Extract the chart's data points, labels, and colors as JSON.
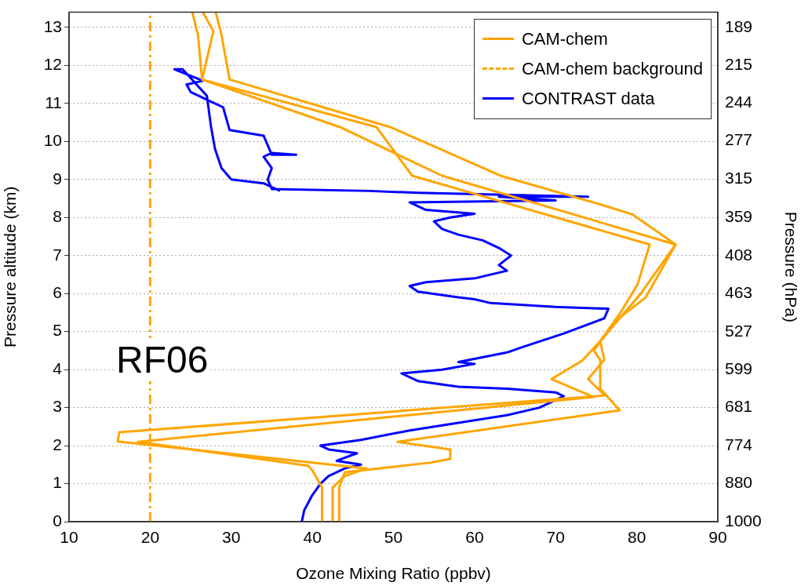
{
  "chart_data": {
    "type": "line",
    "xlabel": "Ozone Mixing Ratio (ppbv)",
    "ylabel": "Pressure altitude (km)",
    "y2label": "Pressure (hPa)",
    "xlim": [
      10,
      90
    ],
    "xticks": [
      10,
      20,
      30,
      40,
      50,
      60,
      70,
      80,
      90
    ],
    "ylim": [
      0,
      13.4
    ],
    "yticks": [
      0,
      1,
      2,
      3,
      4,
      5,
      6,
      7,
      8,
      9,
      10,
      11,
      12,
      13
    ],
    "y2lim": [
      1000,
      179.6
    ],
    "y2ticks": [
      1000,
      880,
      774,
      681,
      599,
      527,
      463,
      408,
      359,
      315,
      277,
      244,
      215,
      189
    ],
    "log": "y2",
    "grid": "y",
    "legend": "top right",
    "marker": "none",
    "annotations": [
      "RF06"
    ],
    "series": [
      {
        "name": "CAM-chem",
        "color": "#ffa500",
        "x": [
          41.2,
          41.2,
          40,
          39.5,
          18.5,
          74.7,
          69.5,
          73.3,
          75.5,
          78,
          80.1,
          81.6,
          52.3,
          47.9,
          26.4,
          25.9,
          25.2
        ],
        "values": [
          0,
          0.9,
          1.35,
          1.47,
          2.1,
          3.28,
          3.75,
          4.24,
          4.75,
          5.5,
          6.24,
          7.29,
          9.1,
          10.38,
          11.63,
          12.8,
          13.4
        ]
      },
      {
        "color": "#ffa500",
        "x": [
          42.5,
          42.5,
          44,
          46.7,
          16,
          16.2,
          76.1,
          74,
          76,
          75.5,
          78.5,
          80.5,
          84.8,
          56,
          43.4,
          26.4,
          27.8,
          26.5
        ],
        "values": [
          0,
          0.9,
          1.2,
          1.4,
          2.11,
          2.35,
          3.32,
          3.75,
          4.26,
          4.75,
          5.5,
          6.0,
          7.29,
          9.1,
          10.38,
          11.63,
          12.9,
          13.4
        ]
      },
      {
        "color": "#ffa500",
        "x": [
          43.3,
          43.3,
          44,
          54.5,
          57,
          57,
          50.5,
          77.9,
          75.5,
          75.5,
          74.7,
          77.5,
          81.1,
          84.8,
          79.5,
          75.1,
          63.2,
          49.6,
          29.8,
          28.8,
          28.1
        ],
        "values": [
          0,
          0.9,
          1.3,
          1.55,
          1.65,
          1.9,
          2.1,
          2.93,
          3.5,
          4.26,
          4.5,
          5.3,
          5.9,
          7.29,
          8.08,
          8.37,
          9.1,
          10.38,
          11.63,
          12.8,
          13.4
        ]
      },
      {
        "name": "CAM-chem background",
        "color": "#ffa500",
        "line_style": "dashed",
        "x": [
          20,
          20
        ],
        "values": [
          0,
          13.4
        ]
      },
      {
        "name": "CONTRAST data",
        "color": "#0000ff",
        "x": [
          38.7,
          39,
          40,
          41,
          42,
          44,
          46,
          43,
          45.5,
          42,
          41,
          46,
          52,
          58,
          64,
          68,
          71,
          70,
          64,
          58,
          53,
          51,
          56,
          60,
          58,
          64,
          66,
          71,
          76,
          76.5,
          70,
          62,
          60,
          58,
          53,
          52,
          54,
          60,
          64,
          63,
          64.5,
          63,
          61,
          58,
          56,
          55,
          57,
          60,
          54,
          52,
          70,
          63,
          74,
          53,
          47,
          35,
          34.5,
          35,
          34,
          35,
          38,
          35,
          34,
          29.8,
          29,
          27,
          25,
          24.5,
          26.5,
          23,
          24,
          27,
          27.5,
          28,
          28.8,
          30,
          34,
          36
        ],
        "values": [
          0,
          0.3,
          0.7,
          1,
          1.2,
          1.4,
          1.5,
          1.6,
          1.8,
          1.9,
          2,
          2.15,
          2.4,
          2.6,
          2.8,
          3,
          3.3,
          3.4,
          3.5,
          3.55,
          3.7,
          3.9,
          4,
          4.15,
          4.2,
          4.45,
          4.6,
          4.95,
          5.35,
          5.6,
          5.65,
          5.75,
          5.85,
          5.9,
          6.05,
          6.2,
          6.3,
          6.4,
          6.6,
          6.75,
          7,
          7.2,
          7.4,
          7.55,
          7.7,
          7.9,
          8,
          8.1,
          8.2,
          8.4,
          8.45,
          8.55,
          8.55,
          8.65,
          8.7,
          8.75,
          9,
          9.3,
          9.6,
          9.7,
          9.65,
          9.65,
          10.15,
          10.3,
          10.9,
          11.1,
          11.3,
          11.5,
          11.6,
          11.9,
          11.9,
          11.2,
          10.4,
          9.8,
          9.3,
          9,
          8.9,
          8.7
        ]
      }
    ]
  }
}
